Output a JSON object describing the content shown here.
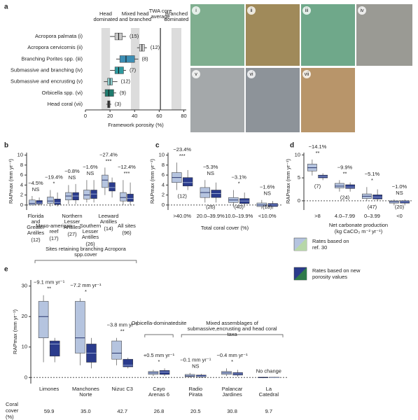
{
  "chart_data": [
    {
      "type": "boxplot",
      "panel_label": "a",
      "orientation": "horizontal",
      "categories": [
        "Acropora palmata (i)",
        "Acropora cervicornis (ii)",
        "Branching Porites spp. (iii)",
        "Submassive and branching (iv)",
        "Submassive and encrusting (v)",
        "Orbicella spp. (vi)",
        "Head coral (vii)"
      ],
      "counts": [
        "(15)",
        "(12)",
        "(8)",
        "(7)",
        "(12)",
        "(9)",
        "(3)"
      ],
      "xlabel": "Framework porosity (%)",
      "xlim": [
        0,
        82
      ],
      "xticks": [
        0,
        20,
        40,
        60,
        80
      ],
      "regions": [
        {
          "label": "Head dominated",
          "range": [
            13,
            20
          ]
        },
        {
          "label": "Mixed head and branched",
          "range": [
            37,
            44
          ]
        },
        {
          "label": "Branched dominated",
          "range": [
            70,
            78
          ]
        }
      ],
      "reference_line": {
        "label": "TWA core average",
        "value": 61
      },
      "series": [
        {
          "colors": [
            "#c9c9c9",
            "#d6d6d6",
            "#3d8fb5",
            "#2e9a9f",
            "#8fd0cf",
            "#1f7b6e",
            "#555555"
          ],
          "min": [
            20,
            42,
            25,
            20,
            15,
            14,
            17
          ],
          "q1": [
            24,
            44,
            28,
            24,
            18,
            16,
            18
          ],
          "median": [
            27,
            46,
            33,
            27,
            20,
            19,
            19
          ],
          "q3": [
            30,
            48,
            40,
            31,
            22,
            23,
            20
          ],
          "max": [
            33,
            50,
            43,
            33,
            26,
            25,
            21
          ]
        }
      ],
      "photo_labels": [
        "i",
        "ii",
        "iii",
        "iv",
        "v",
        "vi",
        "vii"
      ]
    },
    {
      "type": "boxplot",
      "panel_label": "b",
      "orientation": "vertical",
      "ylabel": "RAPmax (mm yr⁻¹)",
      "categories": [
        "Florida and Greater Antilles",
        "Meso-american reef",
        "Northern Lesser Antilles",
        "Southern Lesser Antilles",
        "Leeward Antilles",
        "All sites"
      ],
      "counts": [
        "(12)",
        "(17)",
        "(27)",
        "(26)",
        "(14)",
        "(96)"
      ],
      "count_position": "below_label",
      "annotations": [
        {
          "change": "−4.5%",
          "significance": "NS"
        },
        {
          "change": "−19.4%",
          "significance": "*"
        },
        {
          "change": "−0.8%",
          "significance": "NS"
        },
        {
          "change": "−1.6%",
          "significance": "NS"
        },
        {
          "change": "−27.4%",
          "significance": "***"
        },
        {
          "change": "−12.4%",
          "significance": "***"
        }
      ],
      "ylim": [
        -1,
        10.5
      ],
      "yticks": [
        0,
        2,
        4,
        6,
        8,
        10
      ],
      "zero_line": true,
      "series": [
        {
          "color": "#b5c4df",
          "min": [
            0,
            -0.3,
            0.2,
            0.5,
            2,
            0
          ],
          "q1": [
            0,
            0.3,
            1,
            1.2,
            3.5,
            0.8
          ],
          "median": [
            0.3,
            0.8,
            1.8,
            2,
            5,
            1.5
          ],
          "q3": [
            1,
            1.6,
            2.5,
            3,
            6,
            2.5
          ],
          "max": [
            1.8,
            3,
            4,
            5,
            7.5,
            5
          ]
        },
        {
          "color": "#2a3b8c",
          "min": [
            -0.1,
            -0.3,
            0.2,
            0.5,
            1.5,
            0
          ],
          "q1": [
            0.2,
            0.1,
            1,
            1.3,
            2.8,
            0.7
          ],
          "median": [
            0.4,
            0.5,
            1.8,
            2.2,
            3.5,
            1.3
          ],
          "q3": [
            0.9,
            1.2,
            2.5,
            3,
            4.5,
            2.2
          ],
          "max": [
            1.5,
            2.5,
            4.2,
            5,
            5.5,
            4.5
          ]
        }
      ]
    },
    {
      "type": "boxplot",
      "panel_label": "c",
      "orientation": "vertical",
      "ylabel": "RAPmax (mm yr⁻¹)",
      "categories": [
        ">40.0%",
        "20.0–39.9%",
        "10.0–19.9%",
        "<10.0%"
      ],
      "xlabel": "Total coral cover (%)",
      "counts": [
        "(12)",
        "(26)",
        "(40)",
        "(18)"
      ],
      "count_position": "below_box",
      "annotations": [
        {
          "change": "−23.4%",
          "significance": "***"
        },
        {
          "change": "−5.3%",
          "significance": "NS"
        },
        {
          "change": "−3.1%",
          "significance": "*"
        },
        {
          "change": "−1.6%",
          "significance": "NS"
        }
      ],
      "ylim": [
        -1,
        10.5
      ],
      "yticks": [
        0,
        2,
        4,
        6,
        8,
        10
      ],
      "zero_line": true,
      "series": [
        {
          "color": "#b5c4df",
          "min": [
            3,
            0.5,
            -0.5,
            -0.8
          ],
          "q1": [
            4.5,
            1.5,
            0.5,
            -0.3
          ],
          "median": [
            5.5,
            2.5,
            1,
            0
          ],
          "q3": [
            6.5,
            3.5,
            1.5,
            0.4
          ],
          "max": [
            8.5,
            5,
            3,
            1
          ]
        },
        {
          "color": "#2a3b8c",
          "min": [
            3,
            0.5,
            -0.5,
            -0.8
          ],
          "q1": [
            3.8,
            1.5,
            0.3,
            -0.3
          ],
          "median": [
            4.5,
            2.3,
            0.8,
            0
          ],
          "q3": [
            5.5,
            3,
            1.3,
            0.3
          ],
          "max": [
            7,
            4.5,
            2.5,
            0.8
          ]
        }
      ]
    },
    {
      "type": "boxplot",
      "panel_label": "d",
      "orientation": "vertical",
      "ylabel": "RAPmax (mm yr⁻¹)",
      "categories": [
        ">8",
        "4.0–7.99",
        "0–3.99",
        "<0"
      ],
      "xlabel": "Net carbonate production (kg CaCO₃ m⁻² yr⁻¹)",
      "counts": [
        "(7)",
        "(24)",
        "(47)",
        "(20)"
      ],
      "count_position": "below_box",
      "annotations": [
        {
          "change": "−14.1%",
          "significance": "**"
        },
        {
          "change": "−9.9%",
          "significance": "**"
        },
        {
          "change": "−5.1%",
          "significance": "*"
        },
        {
          "change": "−1.0%",
          "significance": "NS"
        }
      ],
      "ylim": [
        -2,
        10.5
      ],
      "yticks": [
        0,
        5,
        10
      ],
      "zero_line": true,
      "series": [
        {
          "color": "#b5c4df",
          "min": [
            5.5,
            2,
            0,
            -1
          ],
          "q1": [
            6.5,
            2.8,
            0.5,
            -0.5
          ],
          "median": [
            7.2,
            3.2,
            1,
            -0.2
          ],
          "q3": [
            8,
            3.8,
            1.5,
            0
          ],
          "max": [
            9,
            4.5,
            3,
            0.3
          ]
        },
        {
          "color": "#2a3b8c",
          "min": [
            4.5,
            2,
            0,
            -1
          ],
          "q1": [
            5,
            2.7,
            0.4,
            -0.5
          ],
          "median": [
            5.3,
            3,
            0.8,
            -0.2
          ],
          "q3": [
            5.6,
            3.5,
            1.3,
            0
          ],
          "max": [
            6,
            4,
            2.5,
            0.3
          ]
        }
      ]
    },
    {
      "type": "boxplot",
      "panel_label": "e",
      "orientation": "vertical",
      "ylabel": "RAPmax (mm yr⁻¹)",
      "categories": [
        "Limones",
        "Manchones Norte",
        "Nizuc C3",
        "Cayo Arenas 6",
        "Radio Pirata",
        "Palancar Jardines",
        "La Catedral"
      ],
      "annotations": [
        {
          "change": "−9.1 mm yr⁻¹",
          "significance": "**"
        },
        {
          "change": "−7.2 mm yr⁻¹",
          "significance": "*"
        },
        {
          "change": "−3.8 mm yr⁻¹",
          "significance": "**"
        },
        {
          "change": "+0.5 mm yr⁻¹",
          "significance": "*"
        },
        {
          "change": "−0.1 mm yr⁻¹",
          "significance": "NS"
        },
        {
          "change": "−0.4 mm yr⁻¹",
          "significance": "*"
        },
        {
          "change": "No change"
        }
      ],
      "groups": [
        {
          "label": "Sites retaining branching Acropora spp. cover",
          "from": 0,
          "to": 2
        },
        {
          "label": "Orbicella-dominated site",
          "from": 3,
          "to": 3
        },
        {
          "label": "Mixed assemblages of submassive, encrusting and head coral taxa",
          "from": 4,
          "to": 6
        }
      ],
      "coral_cover_label": "Coral cover (%)",
      "coral_cover": [
        59.9,
        {
          "value": 35,
          "label": "35.0"
        },
        42.7,
        26.8,
        20.5,
        30.8,
        9.7
      ],
      "ylim": [
        -2,
        32
      ],
      "yticks": [
        0,
        10,
        20,
        30
      ],
      "zero_line": true,
      "legend": "right",
      "series": [
        {
          "name": "Rates based on ref. 30",
          "color": "#b5c4df",
          "min": [
            5,
            4,
            4,
            0.5,
            0,
            0.5,
            -0.2
          ],
          "q1": [
            13,
            8,
            6,
            1,
            0.3,
            1,
            -0.1
          ],
          "median": [
            20,
            13,
            8,
            1.5,
            0.5,
            1.5,
            0
          ],
          "q3": [
            25,
            25,
            12,
            2,
            1,
            2,
            0.1
          ],
          "max": [
            27,
            26,
            13,
            2.5,
            1.5,
            3,
            0.2
          ]
        },
        {
          "name": "Rates based on new porosity values",
          "color": "#2a3b8c",
          "min": [
            5,
            3,
            3,
            0.5,
            0,
            0.3,
            -0.2
          ],
          "q1": [
            7,
            5,
            3.5,
            1,
            0.2,
            0.8,
            -0.1
          ],
          "median": [
            11,
            8,
            4,
            1.8,
            0.4,
            1.2,
            0
          ],
          "q3": [
            12,
            11,
            6,
            2.3,
            0.8,
            1.6,
            0.1
          ],
          "max": [
            13,
            13,
            6.5,
            3,
            1.2,
            2.5,
            0.2
          ]
        }
      ]
    }
  ]
}
